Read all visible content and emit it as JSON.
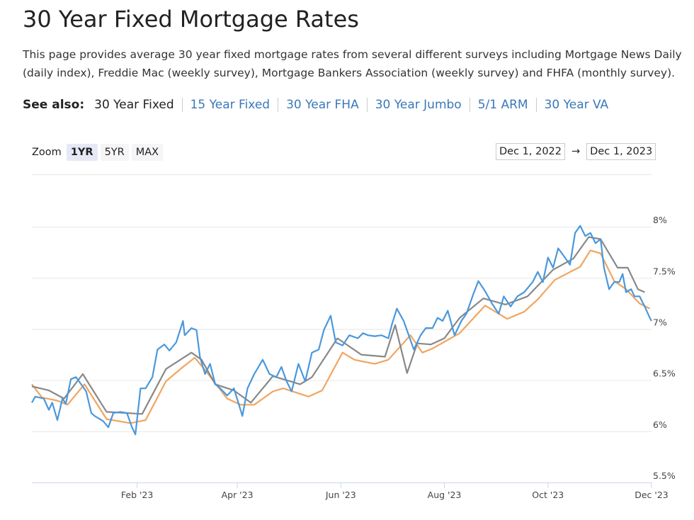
{
  "page": {
    "title": "30 Year Fixed Mortgage Rates",
    "description": "This page provides average 30 year fixed mortgage rates from several different surveys including Mortgage News Daily (daily index), Freddie Mac (weekly survey), Mortgage Bankers Association (weekly survey) and FHFA (monthly survey).",
    "see_also_label": "See also:",
    "see_also": [
      "30 Year Fixed",
      "15 Year Fixed",
      "30 Year FHA",
      "30 Year Jumbo",
      "5/1 ARM",
      "30 Year VA"
    ],
    "zoom_label": "Zoom",
    "zoom_buttons": [
      "1YR",
      "5YR",
      "MAX"
    ],
    "date_from": "Dec 1, 2022",
    "date_arrow": "→",
    "date_to": "Dec 1, 2023"
  },
  "chart_data": {
    "type": "line",
    "xlim": [
      "2022-12-01",
      "2023-12-01"
    ],
    "xticks": [
      {
        "value": "2023-02-01",
        "label": "Feb '23"
      },
      {
        "value": "2023-04-01",
        "label": "Apr '23"
      },
      {
        "value": "2023-06-01",
        "label": "Jun '23"
      },
      {
        "value": "2023-08-01",
        "label": "Aug '23"
      },
      {
        "value": "2023-10-01",
        "label": "Oct '23"
      },
      {
        "value": "2023-12-01",
        "label": "Dec '23"
      }
    ],
    "ylim": [
      5.5,
      8.5
    ],
    "yticks": [
      {
        "value": 5.5,
        "label": "5.5%"
      },
      {
        "value": 6,
        "label": "6%"
      },
      {
        "value": 6.5,
        "label": "6.5%"
      },
      {
        "value": 7,
        "label": "7%"
      },
      {
        "value": 7.5,
        "label": "7.5%"
      },
      {
        "value": 8,
        "label": "8%"
      }
    ],
    "grid": true,
    "series": [
      {
        "color": "#4a98dc",
        "x": [
          "2022-12-01",
          "2022-12-03",
          "2022-12-08",
          "2022-12-11",
          "2022-12-13",
          "2022-12-16",
          "2022-12-19",
          "2022-12-21",
          "2022-12-24",
          "2022-12-27",
          "2022-12-30",
          "2023-01-02",
          "2023-01-05",
          "2023-01-07",
          "2023-01-12",
          "2023-01-15",
          "2023-01-18",
          "2023-01-22",
          "2023-01-26",
          "2023-01-29",
          "2023-01-31",
          "2023-02-03",
          "2023-02-06",
          "2023-02-10",
          "2023-02-13",
          "2023-02-17",
          "2023-02-20",
          "2023-02-24",
          "2023-02-28",
          "2023-03-01",
          "2023-03-05",
          "2023-03-08",
          "2023-03-10",
          "2023-03-13",
          "2023-03-16",
          "2023-03-19",
          "2023-03-22",
          "2023-03-26",
          "2023-03-30",
          "2023-04-04",
          "2023-04-07",
          "2023-04-11",
          "2023-04-16",
          "2023-04-20",
          "2023-04-24",
          "2023-04-27",
          "2023-04-30",
          "2023-05-03",
          "2023-05-07",
          "2023-05-11",
          "2023-05-15",
          "2023-05-19",
          "2023-05-22",
          "2023-05-26",
          "2023-05-29",
          "2023-06-02",
          "2023-06-06",
          "2023-06-11",
          "2023-06-14",
          "2023-06-17",
          "2023-06-21",
          "2023-06-25",
          "2023-06-29",
          "2023-07-01",
          "2023-07-04",
          "2023-07-08",
          "2023-07-11",
          "2023-07-14",
          "2023-07-18",
          "2023-07-21",
          "2023-07-25",
          "2023-07-28",
          "2023-07-31",
          "2023-08-03",
          "2023-08-07",
          "2023-08-11",
          "2023-08-14",
          "2023-08-18",
          "2023-08-21",
          "2023-08-25",
          "2023-08-29",
          "2023-09-02",
          "2023-09-05",
          "2023-09-09",
          "2023-09-13",
          "2023-09-17",
          "2023-09-22",
          "2023-09-25",
          "2023-09-28",
          "2023-10-01",
          "2023-10-04",
          "2023-10-07",
          "2023-10-11",
          "2023-10-14",
          "2023-10-17",
          "2023-10-20",
          "2023-10-23",
          "2023-10-26",
          "2023-10-29",
          "2023-11-01",
          "2023-11-03",
          "2023-11-06",
          "2023-11-09",
          "2023-11-12",
          "2023-11-14",
          "2023-11-16",
          "2023-11-19",
          "2023-11-21",
          "2023-11-24",
          "2023-11-27",
          "2023-11-30",
          "2023-12-01"
        ],
        "values": [
          6.28,
          6.34,
          6.32,
          6.21,
          6.28,
          6.11,
          6.32,
          6.27,
          6.51,
          6.53,
          6.46,
          6.39,
          6.18,
          6.15,
          6.1,
          6.04,
          6.18,
          6.19,
          6.18,
          6.04,
          5.97,
          6.42,
          6.42,
          6.53,
          6.8,
          6.85,
          6.79,
          6.87,
          7.08,
          6.94,
          7.01,
          6.99,
          6.73,
          6.56,
          6.66,
          6.46,
          6.42,
          6.35,
          6.42,
          6.15,
          6.42,
          6.56,
          6.7,
          6.56,
          6.53,
          6.63,
          6.49,
          6.39,
          6.66,
          6.49,
          6.77,
          6.8,
          6.99,
          7.13,
          6.87,
          6.84,
          6.94,
          6.91,
          6.96,
          6.94,
          6.93,
          6.94,
          6.91,
          7.04,
          7.2,
          7.08,
          6.94,
          6.8,
          6.94,
          7.01,
          7.01,
          7.11,
          7.08,
          7.18,
          6.94,
          7.08,
          7.15,
          7.34,
          7.47,
          7.37,
          7.25,
          7.15,
          7.32,
          7.22,
          7.32,
          7.36,
          7.46,
          7.56,
          7.46,
          7.7,
          7.6,
          7.79,
          7.7,
          7.63,
          7.94,
          8.01,
          7.91,
          7.94,
          7.84,
          7.88,
          7.6,
          7.39,
          7.46,
          7.46,
          7.54,
          7.36,
          7.39,
          7.32,
          7.32,
          7.22,
          7.11,
          7.08
        ]
      },
      {
        "color": "#888888",
        "x": [
          "2022-12-01",
          "2022-12-11",
          "2022-12-20",
          "2022-12-31",
          "2023-01-14",
          "2023-02-04",
          "2023-02-18",
          "2023-03-05",
          "2023-03-11",
          "2023-03-19",
          "2023-03-30",
          "2023-04-09",
          "2023-04-22",
          "2023-05-08",
          "2023-05-15",
          "2023-05-30",
          "2023-06-13",
          "2023-06-27",
          "2023-07-03",
          "2023-07-10",
          "2023-07-16",
          "2023-07-24",
          "2023-08-01",
          "2023-08-10",
          "2023-08-24",
          "2023-09-06",
          "2023-09-19",
          "2023-10-04",
          "2023-10-16",
          "2023-10-25",
          "2023-11-01",
          "2023-11-11",
          "2023-11-17",
          "2023-11-23",
          "2023-11-27"
        ],
        "values": [
          6.44,
          6.4,
          6.32,
          6.56,
          6.19,
          6.17,
          6.61,
          6.77,
          6.7,
          6.46,
          6.4,
          6.28,
          6.54,
          6.46,
          6.53,
          6.91,
          6.75,
          6.73,
          7.04,
          6.57,
          6.86,
          6.85,
          6.91,
          7.11,
          7.3,
          7.24,
          7.32,
          7.58,
          7.69,
          7.9,
          7.88,
          7.6,
          7.6,
          7.39,
          7.36
        ]
      },
      {
        "color": "#f0a560",
        "x": [
          "2022-12-01",
          "2022-12-07",
          "2022-12-16",
          "2022-12-22",
          "2023-01-01",
          "2023-01-14",
          "2023-01-28",
          "2023-02-06",
          "2023-02-18",
          "2023-02-28",
          "2023-03-07",
          "2023-03-13",
          "2023-03-26",
          "2023-04-03",
          "2023-04-11",
          "2023-04-22",
          "2023-04-28",
          "2023-05-13",
          "2023-05-21",
          "2023-06-02",
          "2023-06-09",
          "2023-06-21",
          "2023-06-29",
          "2023-07-12",
          "2023-07-19",
          "2023-07-25",
          "2023-08-10",
          "2023-08-25",
          "2023-09-07",
          "2023-09-17",
          "2023-09-25",
          "2023-10-05",
          "2023-10-20",
          "2023-10-26",
          "2023-11-01",
          "2023-11-09",
          "2023-11-16",
          "2023-11-24",
          "2023-11-30"
        ],
        "values": [
          6.46,
          6.33,
          6.3,
          6.26,
          6.46,
          6.12,
          6.08,
          6.11,
          6.49,
          6.63,
          6.72,
          6.6,
          6.32,
          6.26,
          6.26,
          6.39,
          6.42,
          6.34,
          6.4,
          6.77,
          6.7,
          6.66,
          6.7,
          6.94,
          6.77,
          6.81,
          6.96,
          7.23,
          7.1,
          7.17,
          7.29,
          7.48,
          7.61,
          7.77,
          7.74,
          7.47,
          7.39,
          7.25,
          7.2
        ]
      }
    ]
  }
}
